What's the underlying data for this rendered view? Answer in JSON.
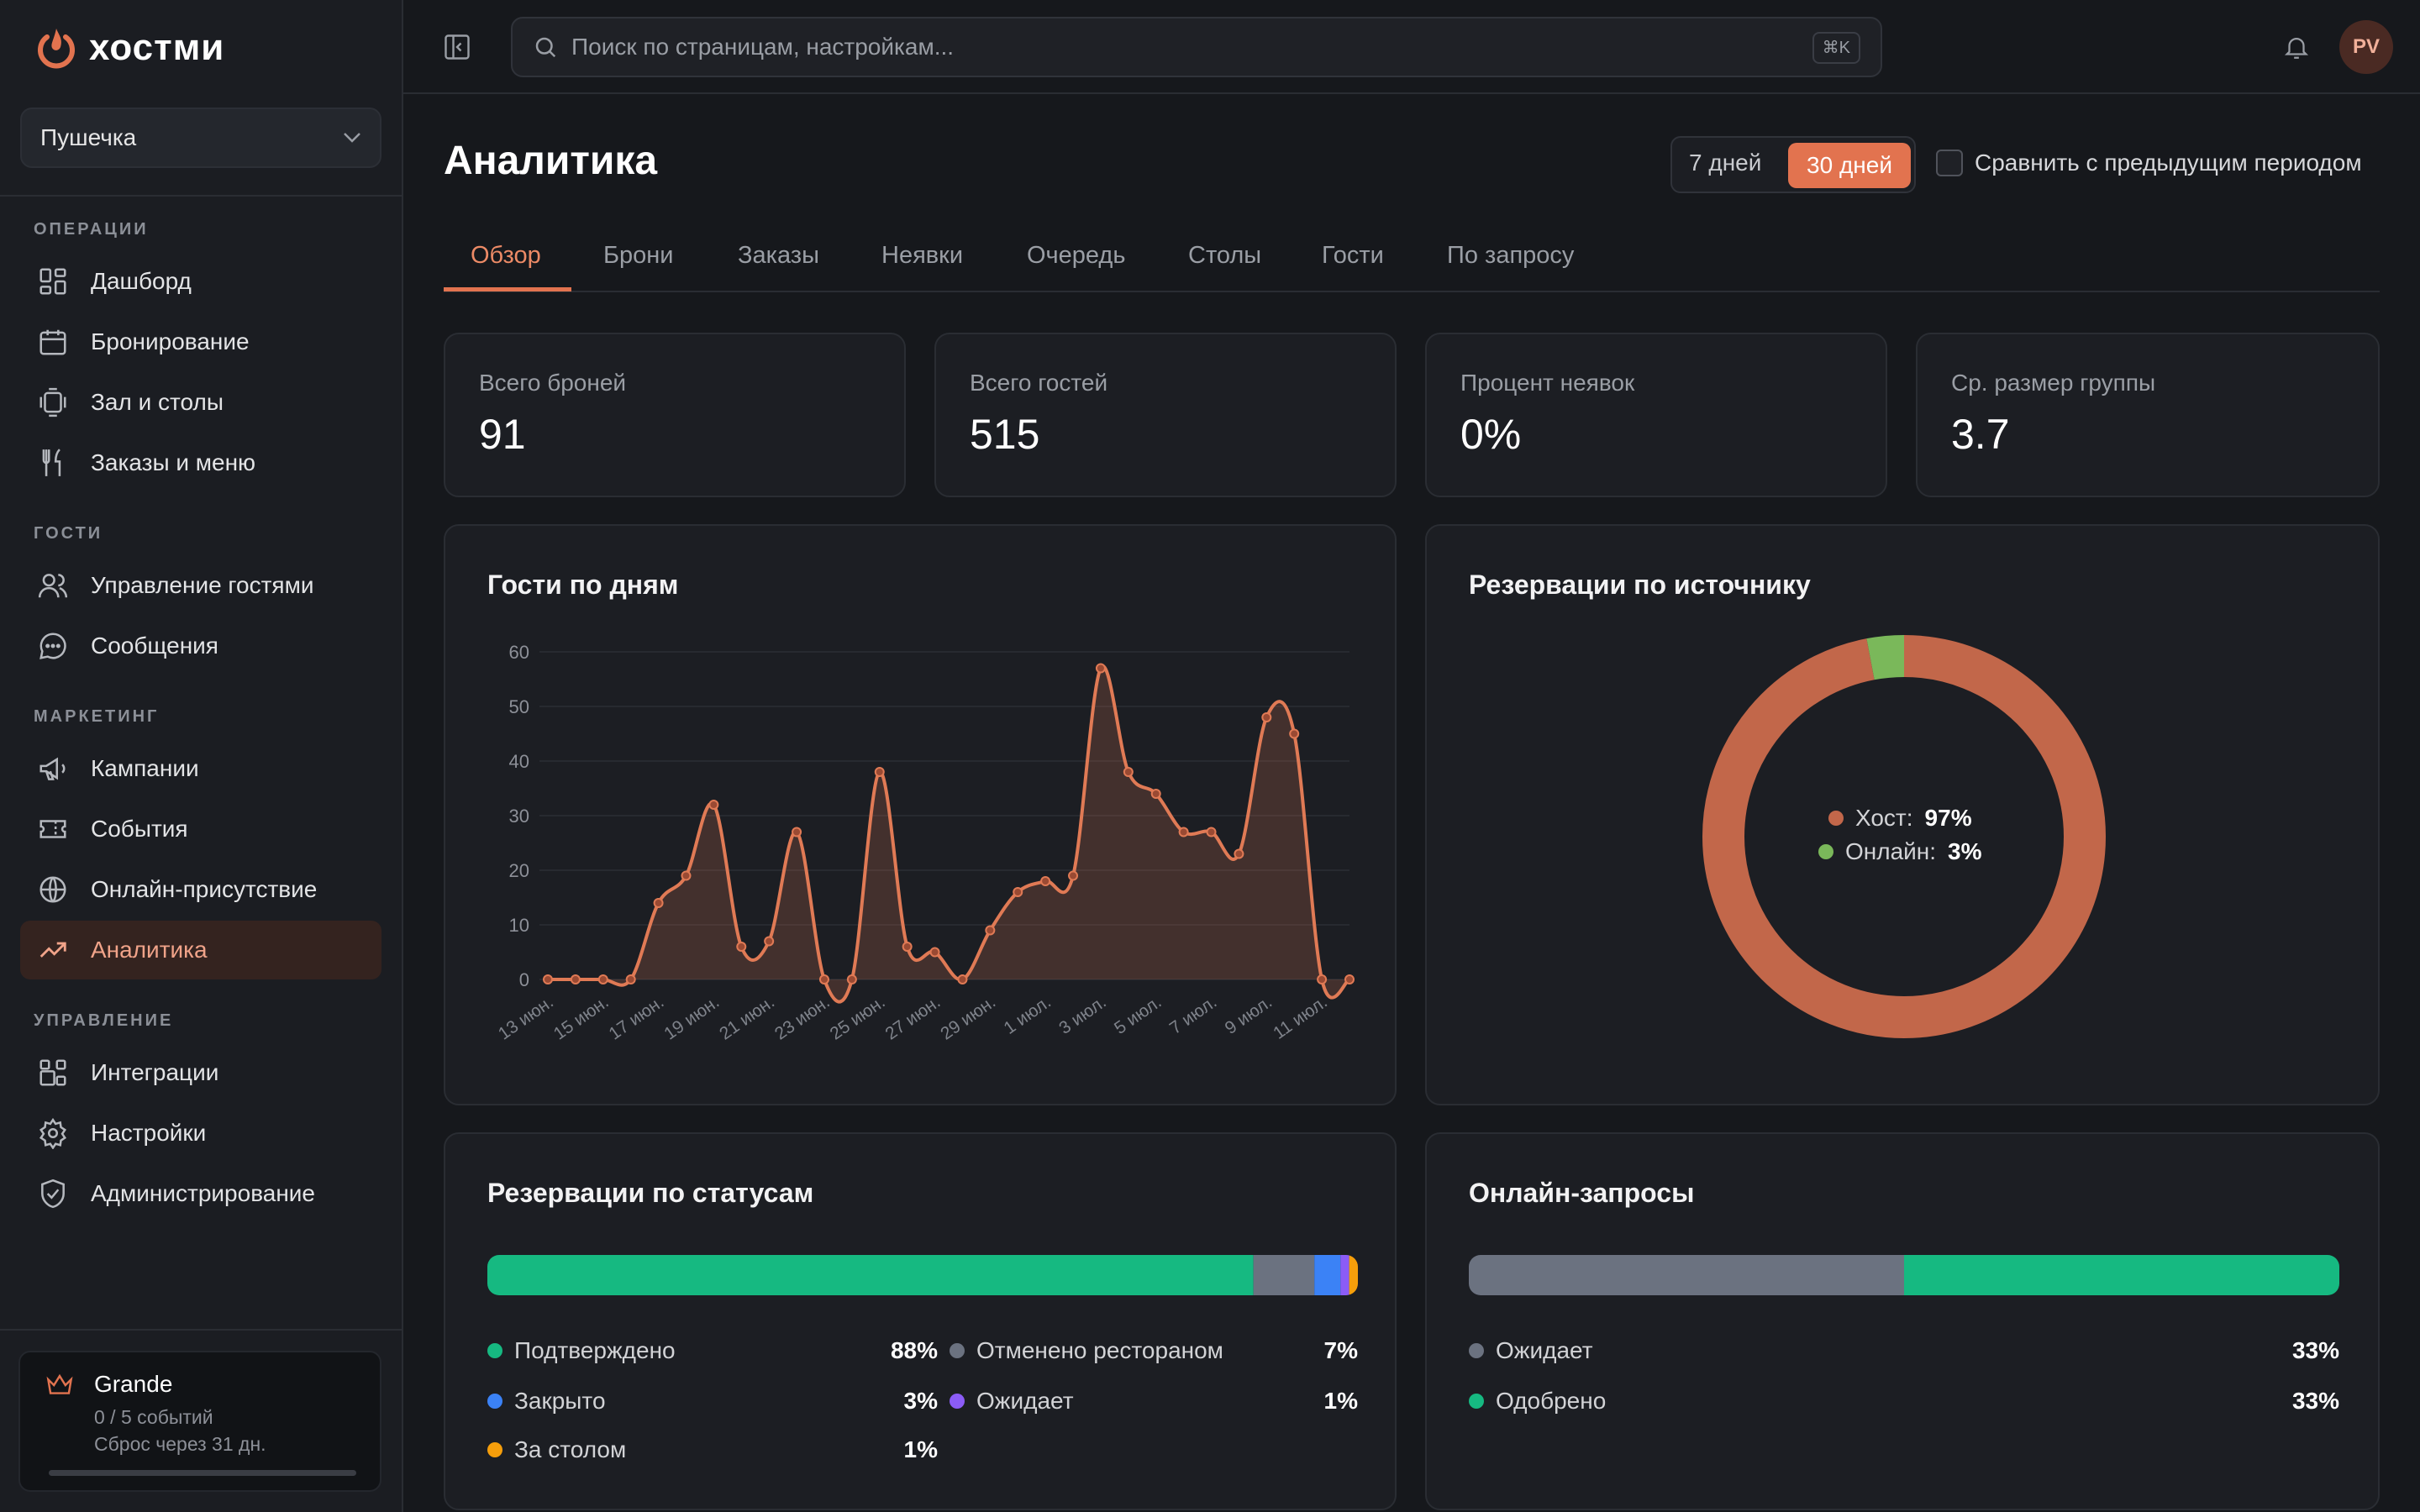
{
  "app": {
    "name": "хостми"
  },
  "sidebar": {
    "venue": "Пушечка",
    "sections": {
      "ops": "ОПЕРАЦИИ",
      "guests": "ГОСТИ",
      "marketing": "МАРКЕТИНГ",
      "manage": "УПРАВЛЕНИЕ"
    },
    "items": {
      "dashboard": "Дашборд",
      "booking": "Бронирование",
      "hall": "Зал и столы",
      "orders": "Заказы и меню",
      "guest_mgmt": "Управление гостями",
      "messages": "Сообщения",
      "campaigns": "Кампании",
      "events": "События",
      "online": "Онлайн-присутствие",
      "analytics": "Аналитика",
      "integrations": "Интеграции",
      "settings": "Настройки",
      "admin": "Администрирование"
    },
    "plan": {
      "name": "Grande",
      "events": "0 / 5 событий",
      "reset": "Сброс через 31 дн.",
      "usage": 0
    }
  },
  "topbar": {
    "search_placeholder": "Поиск по страницам, настройкам...",
    "shortcut": "⌘K",
    "avatar": "PV"
  },
  "page": {
    "title": "Аналитика",
    "period": {
      "opt7": "7 дней",
      "opt30": "30 дней",
      "selected": "30 дней"
    },
    "compare_label": "Сравнить с предыдущим периодом",
    "tabs": [
      "Обзор",
      "Брони",
      "Заказы",
      "Неявки",
      "Очередь",
      "Столы",
      "Гости",
      "По запросу"
    ],
    "active_tab": "Обзор"
  },
  "stats": [
    {
      "label": "Всего броней",
      "value": "91"
    },
    {
      "label": "Всего гостей",
      "value": "515"
    },
    {
      "label": "Процент неявок",
      "value": "0%"
    },
    {
      "label": "Ср. размер группы",
      "value": "3.7"
    }
  ],
  "guests_chart": {
    "title": "Гости по дням"
  },
  "source_chart": {
    "title": "Резервации по источнику",
    "items": [
      {
        "label": "Хост:",
        "value": "97%",
        "color": "#c2674a"
      },
      {
        "label": "Онлайн:",
        "value": "3%",
        "color": "#7ab85a"
      }
    ]
  },
  "status_chart": {
    "title": "Резервации по статусам",
    "items": [
      {
        "label": "Подтверждено",
        "value": "88%",
        "color": "#16b981"
      },
      {
        "label": "Отменено рестораном",
        "value": "7%",
        "color": "#6b7280"
      },
      {
        "label": "Закрыто",
        "value": "3%",
        "color": "#3b82f6"
      },
      {
        "label": "Ожидает",
        "value": "1%",
        "color": "#8b5cf6"
      },
      {
        "label": "За столом",
        "value": "1%",
        "color": "#f59e0b"
      }
    ]
  },
  "requests_chart": {
    "title": "Онлайн-запросы",
    "items": [
      {
        "label": "Ожидает",
        "value": "33%",
        "color": "#6b7280"
      },
      {
        "label": "Одобрено",
        "value": "33%",
        "color": "#16b981"
      }
    ]
  },
  "chart_data": [
    {
      "type": "area",
      "title": "Гости по дням",
      "x": [
        "13 июн.",
        "14 июн.",
        "15 июн.",
        "16 июн.",
        "17 июн.",
        "18 июн.",
        "19 июн.",
        "20 июн.",
        "21 июн.",
        "22 июн.",
        "23 июн.",
        "24 июн.",
        "25 июн.",
        "26 июн.",
        "27 июн.",
        "28 июн.",
        "29 июн.",
        "30 июн.",
        "1 июл.",
        "2 июл.",
        "3 июл.",
        "4 июл.",
        "5 июл.",
        "6 июл.",
        "7 июл.",
        "8 июл.",
        "9 июл.",
        "10 июл.",
        "11 июл.",
        "12 июл."
      ],
      "tick_labels": [
        "13 июн.",
        "15 июн.",
        "17 июн.",
        "19 июн.",
        "21 июн.",
        "23 июн.",
        "25 июн.",
        "27 июн.",
        "29 июн.",
        "1 июл.",
        "3 июл.",
        "5 июл.",
        "7 июл.",
        "9 июл.",
        "11 июл."
      ],
      "values": [
        0,
        0,
        0,
        0,
        14,
        19,
        32,
        6,
        7,
        27,
        0,
        0,
        38,
        6,
        5,
        0,
        9,
        16,
        18,
        19,
        57,
        38,
        34,
        27,
        27,
        23,
        48,
        45,
        0,
        0
      ],
      "ylim": [
        0,
        60
      ],
      "yticks": [
        0,
        10,
        20,
        30,
        40,
        50,
        60
      ],
      "grid": true,
      "color": "#e07a55"
    },
    {
      "type": "pie",
      "title": "Резервации по источнику",
      "categories": [
        "Хост",
        "Онлайн"
      ],
      "values": [
        97,
        3
      ],
      "colors": [
        "#c2674a",
        "#7ab85a"
      ]
    },
    {
      "type": "bar",
      "title": "Резервации по статусам",
      "categories": [
        "Подтверждено",
        "Отменено рестораном",
        "Закрыто",
        "Ожидает",
        "За столом"
      ],
      "values": [
        88,
        7,
        3,
        1,
        1
      ],
      "colors": [
        "#16b981",
        "#6b7280",
        "#3b82f6",
        "#8b5cf6",
        "#f59e0b"
      ]
    },
    {
      "type": "bar",
      "title": "Онлайн-запросы",
      "categories": [
        "Ожидает",
        "Одобрено"
      ],
      "values": [
        33,
        33
      ],
      "colors": [
        "#6b7280",
        "#16b981"
      ]
    }
  ]
}
